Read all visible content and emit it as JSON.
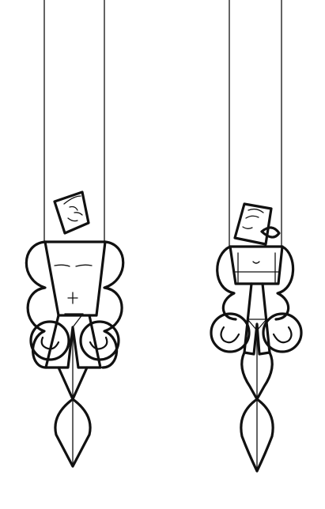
{
  "scene": {
    "background_color": "#ffffff",
    "line_color": "#111111"
  },
  "figures": [
    {
      "id": "left-figure",
      "type": "hanging-line-art-figure",
      "elements": [
        "suspension-line",
        "head",
        "face-doodle",
        "torso",
        "curly-outline",
        "ring-motif",
        "leg-pointer"
      ]
    },
    {
      "id": "right-figure",
      "type": "hanging-line-art-figure",
      "elements": [
        "suspension-line",
        "head",
        "face-doodle",
        "torso",
        "curly-outline",
        "ring-motif",
        "leg-pointer"
      ]
    }
  ]
}
